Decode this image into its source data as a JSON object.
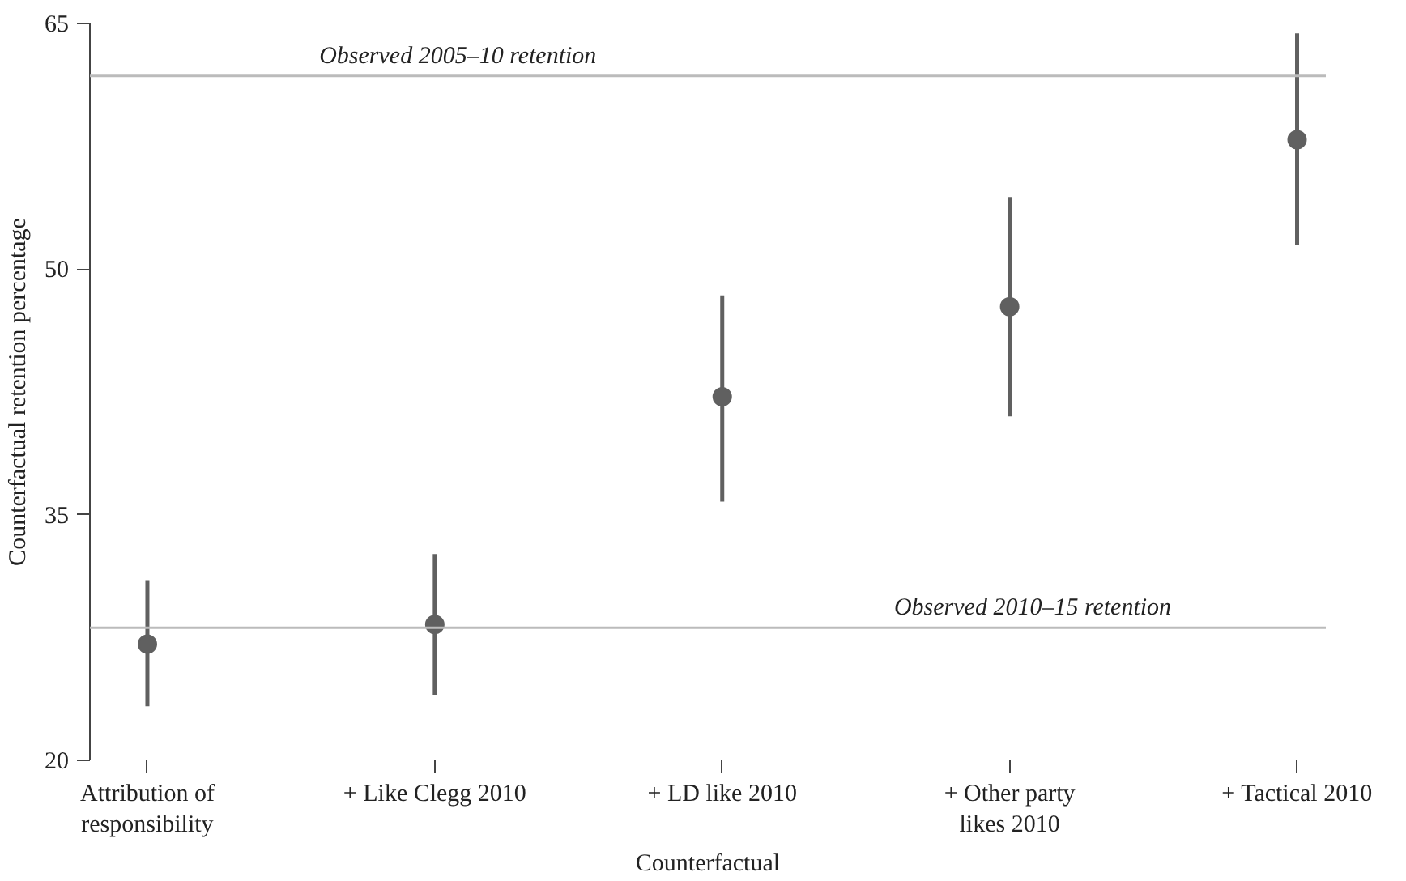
{
  "chart_data": {
    "type": "scatter",
    "xlabel": "Counterfactual",
    "ylabel": "Counterfactual retention percentage",
    "categories": [
      "Attribution of responsibility",
      "+ Like Clegg 2010",
      "+ LD like 2010",
      "+ Other party likes 2010",
      "+ Tactical 2010"
    ],
    "series": [
      {
        "color": "#606060",
        "values": [
          27.1,
          28.3,
          42.2,
          47.7,
          57.9
        ],
        "errors": [
          [
            23.3,
            31.0
          ],
          [
            24.0,
            32.6
          ],
          [
            35.8,
            48.4
          ],
          [
            41.0,
            54.4
          ],
          [
            51.5,
            64.4
          ]
        ]
      }
    ],
    "ylim": [
      20,
      65
    ],
    "yticks": [
      20,
      35,
      50,
      65
    ],
    "ref_lines": [
      {
        "axis": "y",
        "value": 61.8,
        "label": "Observed 2005–10 retention",
        "color": "#bbbbbb"
      },
      {
        "axis": "y",
        "value": 28.1,
        "label": "Observed 2010–15 retention",
        "color": "#bbbbbb"
      }
    ],
    "marker": "circle",
    "grid": false
  }
}
